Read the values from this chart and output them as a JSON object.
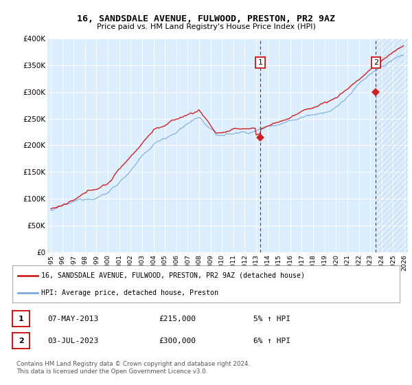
{
  "title": "16, SANDSDALE AVENUE, FULWOOD, PRESTON, PR2 9AZ",
  "subtitle": "Price paid vs. HM Land Registry's House Price Index (HPI)",
  "ylabel_ticks": [
    "£0",
    "£50K",
    "£100K",
    "£150K",
    "£200K",
    "£250K",
    "£300K",
    "£350K",
    "£400K"
  ],
  "ytick_values": [
    0,
    50000,
    100000,
    150000,
    200000,
    250000,
    300000,
    350000,
    400000
  ],
  "ylim": [
    0,
    400000
  ],
  "xlim_start": 1994.7,
  "xlim_end": 2026.3,
  "hpi_color": "#7aaadd",
  "price_color": "#cc2222",
  "vline_color": "#cc0000",
  "marker1_year": 2013.35,
  "marker2_year": 2023.5,
  "sale1_price": 215000,
  "sale2_price": 300000,
  "legend_label1": "16, SANDSDALE AVENUE, FULWOOD, PRESTON, PR2 9AZ (detached house)",
  "legend_label2": "HPI: Average price, detached house, Preston",
  "table_row1": [
    "1",
    "07-MAY-2013",
    "£215,000",
    "5% ↑ HPI"
  ],
  "table_row2": [
    "2",
    "03-JUL-2023",
    "£300,000",
    "6% ↑ HPI"
  ],
  "footnote": "Contains HM Land Registry data © Crown copyright and database right 2024.\nThis data is licensed under the Open Government Licence v3.0.",
  "plot_bg_color": "#ddeeff",
  "fig_bg_color": "#ffffff",
  "hatch_color": "#bbccdd"
}
